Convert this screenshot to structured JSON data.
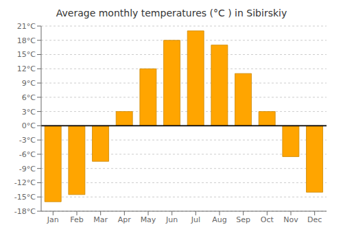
{
  "chart_data": {
    "type": "bar",
    "title": "Average monthly temperatures (°C ) in Sibirskiy",
    "categories": [
      "Jan",
      "Feb",
      "Mar",
      "Apr",
      "May",
      "Jun",
      "Jul",
      "Aug",
      "Sep",
      "Oct",
      "Nov",
      "Dec"
    ],
    "values": [
      -16,
      -14.5,
      -7.5,
      3,
      12,
      18,
      20,
      17,
      11,
      3,
      -6.5,
      -14
    ],
    "color": "#FFA500",
    "ylim": [
      -18,
      21
    ],
    "yticks": [
      {
        "value": -18,
        "label": "-18°C"
      },
      {
        "value": -15,
        "label": "-15°C"
      },
      {
        "value": -12,
        "label": "-12°C"
      },
      {
        "value": -9,
        "label": "-9°C"
      },
      {
        "value": -6,
        "label": "-6°C"
      },
      {
        "value": -3,
        "label": "-3°C"
      },
      {
        "value": 0,
        "label": "0°C"
      },
      {
        "value": 3,
        "label": "3°C"
      },
      {
        "value": 6,
        "label": "6°C"
      },
      {
        "value": 9,
        "label": "9°C"
      },
      {
        "value": 12,
        "label": "12°C"
      },
      {
        "value": 15,
        "label": "15°C"
      },
      {
        "value": 18,
        "label": "18°C"
      },
      {
        "value": 21,
        "label": "21°C"
      }
    ],
    "grid": true
  }
}
